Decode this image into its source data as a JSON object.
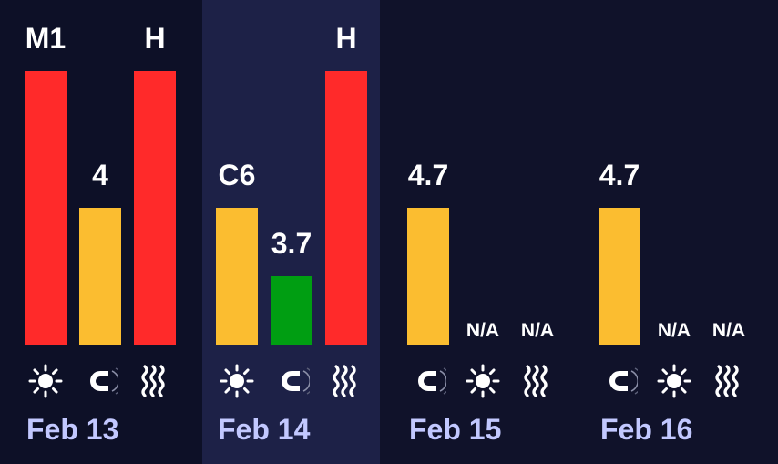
{
  "chart_data": {
    "type": "bar",
    "title": "",
    "scale": {
      "levels": [
        "A",
        "B",
        "C",
        "M",
        "X"
      ]
    },
    "colors": {
      "background": "#10122a",
      "panel_left": "#0d1027",
      "panel_selected": "#1d2147",
      "red": "#ff2a2a",
      "yellow": "#fbbd30",
      "green": "#009e12",
      "text": "#ffffff",
      "date_text": "#c2c8ff"
    },
    "days": [
      {
        "date": "Feb 13",
        "bars": [
          {
            "metric": "sun-icon",
            "label": "M1",
            "level": 1.0,
            "color": "#ff2a2a"
          },
          {
            "metric": "magnet-icon",
            "label": "4",
            "level": 0.5,
            "color": "#fbbd30"
          },
          {
            "metric": "radiation-icon",
            "label": "H",
            "level": 1.0,
            "color": "#ff2a2a"
          }
        ]
      },
      {
        "date": "Feb 14",
        "bars": [
          {
            "metric": "sun-icon",
            "label": "C6",
            "level": 0.5,
            "color": "#fbbd30"
          },
          {
            "metric": "magnet-icon",
            "label": "3.7",
            "level": 0.25,
            "color": "#009e12"
          },
          {
            "metric": "radiation-icon",
            "label": "H",
            "level": 1.0,
            "color": "#ff2a2a"
          }
        ]
      },
      {
        "date": "Feb 15",
        "bars": [
          {
            "metric": "magnet-icon",
            "label": "4.7",
            "level": 0.5,
            "color": "#fbbd30"
          },
          {
            "metric": "sun-icon",
            "label": "N/A",
            "level": 0,
            "color": "#fbbd30"
          },
          {
            "metric": "radiation-icon",
            "label": "N/A",
            "level": 0,
            "color": "#fbbd30"
          }
        ]
      },
      {
        "date": "Feb 16",
        "bars": [
          {
            "metric": "magnet-icon",
            "label": "4.7",
            "level": 0.5,
            "color": "#fbbd30"
          },
          {
            "metric": "sun-icon",
            "label": "N/A",
            "level": 0,
            "color": "#fbbd30"
          },
          {
            "metric": "radiation-icon",
            "label": "N/A",
            "level": 0,
            "color": "#fbbd30"
          }
        ]
      }
    ]
  }
}
